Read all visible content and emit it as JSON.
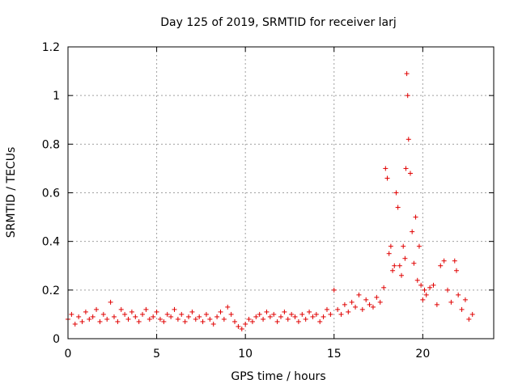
{
  "chart_data": {
    "type": "scatter",
    "title": "Day 125 of 2019, SRMTID for receiver larj",
    "xlabel": "GPS time / hours",
    "ylabel": "SRMTID / TECUs",
    "xlim": [
      0,
      24
    ],
    "ylim": [
      0,
      1.2
    ],
    "xticks": [
      0,
      5,
      10,
      15,
      20
    ],
    "xtick_labels": [
      "0",
      "5",
      "10",
      "15",
      "20"
    ],
    "yticks": [
      0,
      0.2,
      0.4,
      0.6,
      0.8,
      1,
      1.2
    ],
    "ytick_labels": [
      "0",
      "0.2",
      "0.4",
      "0.6",
      "0.8",
      "1",
      "1.2"
    ],
    "grid": true,
    "marker": "+",
    "color": "#e00000",
    "series": [
      {
        "name": "SRMTID",
        "x": [
          0.0,
          0.2,
          0.4,
          0.6,
          0.8,
          1.0,
          1.2,
          1.4,
          1.6,
          1.8,
          2.0,
          2.2,
          2.4,
          2.6,
          2.8,
          3.0,
          3.2,
          3.4,
          3.6,
          3.8,
          4.0,
          4.2,
          4.4,
          4.6,
          4.8,
          5.0,
          5.2,
          5.4,
          5.6,
          5.8,
          6.0,
          6.2,
          6.4,
          6.6,
          6.8,
          7.0,
          7.2,
          7.4,
          7.6,
          7.8,
          8.0,
          8.2,
          8.4,
          8.6,
          8.8,
          9.0,
          9.2,
          9.4,
          9.6,
          9.8,
          10.0,
          10.2,
          10.4,
          10.6,
          10.8,
          11.0,
          11.2,
          11.4,
          11.6,
          11.8,
          12.0,
          12.2,
          12.4,
          12.6,
          12.8,
          13.0,
          13.2,
          13.4,
          13.6,
          13.8,
          14.0,
          14.2,
          14.4,
          14.6,
          14.8,
          15.0,
          15.2,
          15.4,
          15.6,
          15.8,
          16.0,
          16.2,
          16.4,
          16.6,
          16.8,
          17.0,
          17.2,
          17.4,
          17.6,
          17.8,
          17.9,
          18.0,
          18.1,
          18.2,
          18.3,
          18.4,
          18.5,
          18.6,
          18.7,
          18.8,
          18.9,
          19.0,
          19.05,
          19.1,
          19.15,
          19.2,
          19.3,
          19.4,
          19.5,
          19.6,
          19.7,
          19.8,
          19.9,
          20.0,
          20.1,
          20.2,
          20.4,
          20.6,
          20.8,
          21.0,
          21.2,
          21.4,
          21.6,
          21.8,
          21.9,
          22.0,
          22.2,
          22.4,
          22.6,
          22.8
        ],
        "y": [
          0.08,
          0.1,
          0.06,
          0.09,
          0.07,
          0.11,
          0.08,
          0.09,
          0.12,
          0.07,
          0.1,
          0.08,
          0.15,
          0.09,
          0.07,
          0.12,
          0.1,
          0.08,
          0.11,
          0.09,
          0.07,
          0.1,
          0.12,
          0.08,
          0.09,
          0.11,
          0.08,
          0.07,
          0.1,
          0.09,
          0.12,
          0.08,
          0.1,
          0.07,
          0.09,
          0.11,
          0.08,
          0.09,
          0.07,
          0.1,
          0.08,
          0.06,
          0.09,
          0.11,
          0.08,
          0.13,
          0.1,
          0.07,
          0.05,
          0.04,
          0.06,
          0.08,
          0.07,
          0.09,
          0.1,
          0.08,
          0.11,
          0.09,
          0.1,
          0.07,
          0.09,
          0.11,
          0.08,
          0.1,
          0.09,
          0.07,
          0.1,
          0.08,
          0.11,
          0.09,
          0.1,
          0.07,
          0.09,
          0.12,
          0.1,
          0.2,
          0.12,
          0.1,
          0.14,
          0.11,
          0.15,
          0.13,
          0.18,
          0.12,
          0.16,
          0.14,
          0.13,
          0.17,
          0.15,
          0.21,
          0.7,
          0.66,
          0.35,
          0.38,
          0.28,
          0.3,
          0.6,
          0.54,
          0.3,
          0.26,
          0.38,
          0.33,
          0.7,
          1.09,
          1.0,
          0.82,
          0.68,
          0.44,
          0.31,
          0.5,
          0.24,
          0.38,
          0.22,
          0.16,
          0.2,
          0.18,
          0.21,
          0.22,
          0.14,
          0.3,
          0.32,
          0.2,
          0.15,
          0.32,
          0.28,
          0.18,
          0.12,
          0.16,
          0.08,
          0.1
        ]
      }
    ]
  }
}
